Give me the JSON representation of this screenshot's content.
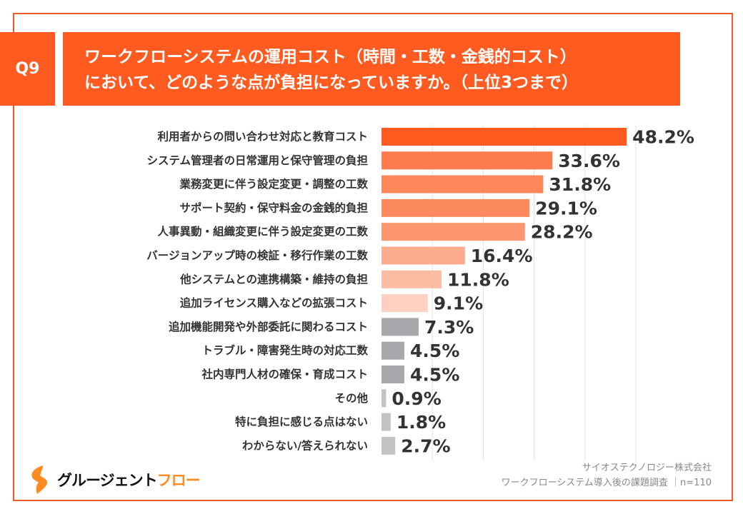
{
  "header": {
    "question_tag": "Q9",
    "title_lines": [
      "ワークフローシステムの運用コスト（時間・工数・金銭的コスト）",
      "において、どのような点が負担になっていますか。（上位3つまで）"
    ]
  },
  "chart_data": {
    "type": "bar",
    "orientation": "horizontal",
    "categories": [
      "利用者からの問い合わせ対応と教育コスト",
      "システム管理者の日常運用と保守管理の負担",
      "業務変更に伴う設定変更・調整の工数",
      "サポート契約・保守料金の金銭的負担",
      "人事異動・組織変更に伴う設定変更の工数",
      "バージョンアップ時の検証・移行作業の工数",
      "他システムとの連携構築・維持の負担",
      "追加ライセンス購入などの拡張コスト",
      "追加機能開発や外部委託に関わるコスト",
      "トラブル・障害発生時の対応工数",
      "社内専門人材の確保・育成コスト",
      "その他",
      "特に負担に感じる点はない",
      "わからない/答えられない"
    ],
    "values": [
      48.2,
      33.6,
      31.8,
      29.1,
      28.2,
      16.4,
      11.8,
      9.1,
      7.3,
      4.5,
      4.5,
      0.9,
      1.8,
      2.7
    ],
    "value_labels": [
      "48.2%",
      "33.6%",
      "31.8%",
      "29.1%",
      "28.2%",
      "16.4%",
      "11.8%",
      "9.1%",
      "7.3%",
      "4.5%",
      "4.5%",
      "0.9%",
      "1.8%",
      "2.7%"
    ],
    "colors": [
      "#ff5a1f",
      "#fd7b4c",
      "#fd875b",
      "#fd8a5e",
      "#fd966f",
      "#fdab8e",
      "#fdbca4",
      "#fdd0bf",
      "#a9a8ad",
      "#a9a8ad",
      "#a9a8ad",
      "#c3c2c7",
      "#c3c2c7",
      "#c3c2c7"
    ],
    "xlim": [
      0,
      60
    ],
    "grid": true,
    "unit": "%"
  },
  "footer": {
    "logo_text_main": "グルージェント",
    "logo_text_accent": "フロー",
    "source_line1": "サイオステクノロジー株式会社",
    "source_line2": "ワークフローシステム導入後の課題調査 ｜n=110",
    "brand_color": "#ff8a1f"
  }
}
